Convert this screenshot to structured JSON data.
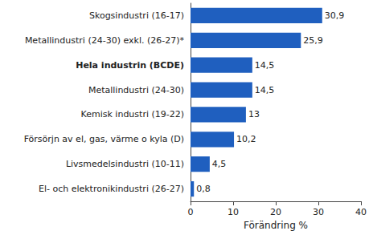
{
  "chart_data": {
    "type": "bar",
    "orientation": "horizontal",
    "x_label": "Förändring %",
    "categories": [
      "Skogsindustri (16-17)",
      "Metallindustri (24-30) exkl. (26-27)*",
      "Hela industrin (BCDE)",
      "Metallindustri (24-30)",
      "Kemisk industri (19-22)",
      "Försörjn av el, gas, värme o kyla (D)",
      "Livsmedelsindustri (10-11)",
      "El- och elektronikindustri (26-27)"
    ],
    "values": [
      30.9,
      25.9,
      14.5,
      14.5,
      13,
      10.2,
      4.5,
      0.8
    ],
    "value_labels": [
      "30,9",
      "25,9",
      "14,5",
      "14,5",
      "13",
      "10,2",
      "4,5",
      "0,8"
    ],
    "color": "#1f5fbf",
    "xlim": [
      0,
      40
    ],
    "xticks": [
      0,
      10,
      20,
      30,
      40
    ],
    "grid": false,
    "data_labels": true
  }
}
